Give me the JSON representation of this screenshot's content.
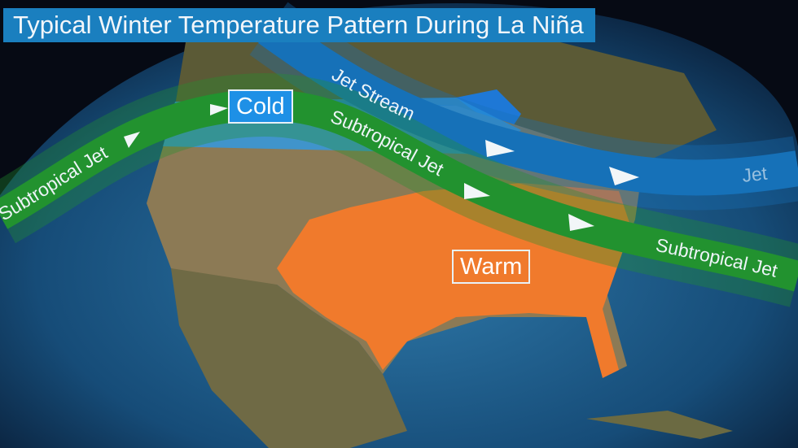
{
  "title": "Typical Winter Temperature Pattern During La Niña",
  "regions": {
    "cold": {
      "label": "Cold",
      "color": "#1e90e6"
    },
    "warm": {
      "label": "Warm",
      "color": "#f07a2c"
    }
  },
  "jets": {
    "jet_stream": {
      "label": "Jet Stream",
      "label_right": "Jet",
      "color": "#1671b8"
    },
    "subtropical": {
      "label": "Subtropical Jet",
      "color": "#22922f"
    }
  },
  "icons": [
    "flow-arrow-icon"
  ]
}
